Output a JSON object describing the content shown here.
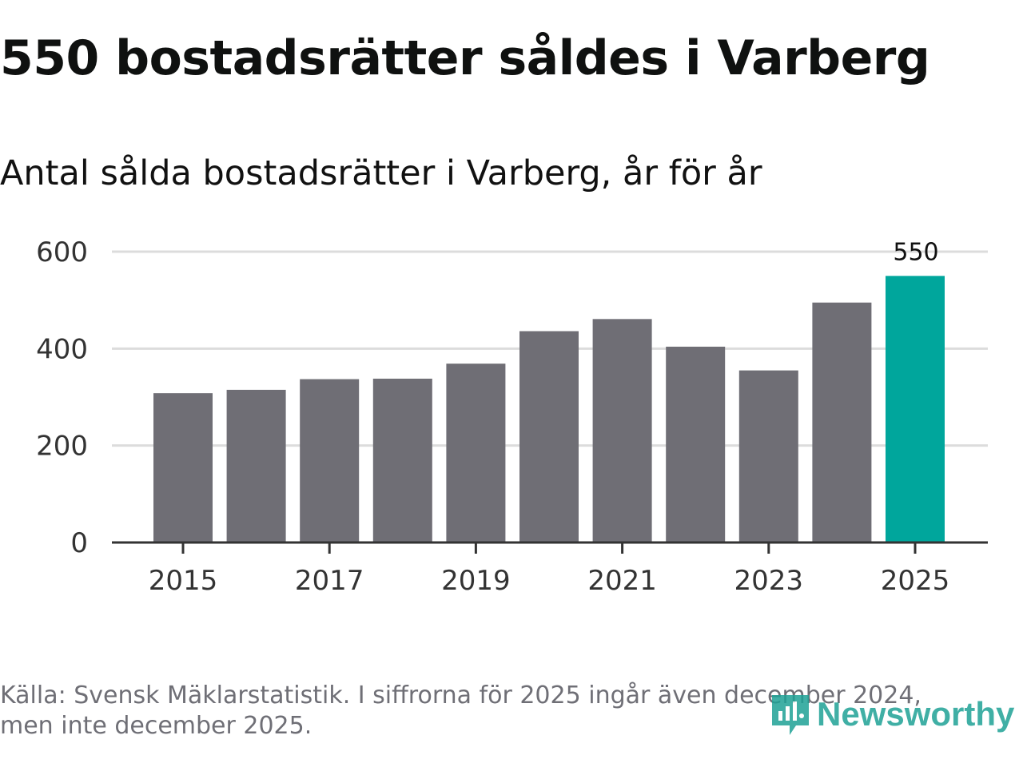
{
  "headline": "550 bostadsrätter såldes i Varberg",
  "subtitle": "Antal sålda bostadsrätter i Varberg, år för år",
  "chart_data": {
    "type": "bar",
    "title": "550 bostadsrätter såldes i Varberg",
    "subtitle": "Antal sålda bostadsrätter i Varberg, år för år",
    "categories": [
      "2015",
      "2016",
      "2017",
      "2018",
      "2019",
      "2020",
      "2021",
      "2022",
      "2023",
      "2024",
      "2025"
    ],
    "values": [
      308,
      315,
      337,
      338,
      369,
      436,
      461,
      404,
      355,
      495,
      550
    ],
    "highlight_index": 10,
    "highlight_label": "550",
    "ylim": [
      0,
      600
    ],
    "yticks": [
      0,
      200,
      400,
      600
    ],
    "xtick_labels": [
      "2015",
      "2017",
      "2019",
      "2021",
      "2023",
      "2025"
    ],
    "xlabel": "",
    "ylabel": "",
    "grid": true,
    "colors": {
      "default": "#6f6e75",
      "highlight": "#00a69c",
      "grid": "#dcdcdc",
      "axis": "#333333"
    }
  },
  "footer": {
    "source_line1": "Källa: Svensk Mäklarstatistik. I siffrorna för 2025 ingår även december 2024,",
    "source_line2": "men inte december 2025."
  },
  "logo": {
    "text": "Newsworthy",
    "icon": "newsworthy-logo-icon",
    "color": "#1fa296"
  }
}
